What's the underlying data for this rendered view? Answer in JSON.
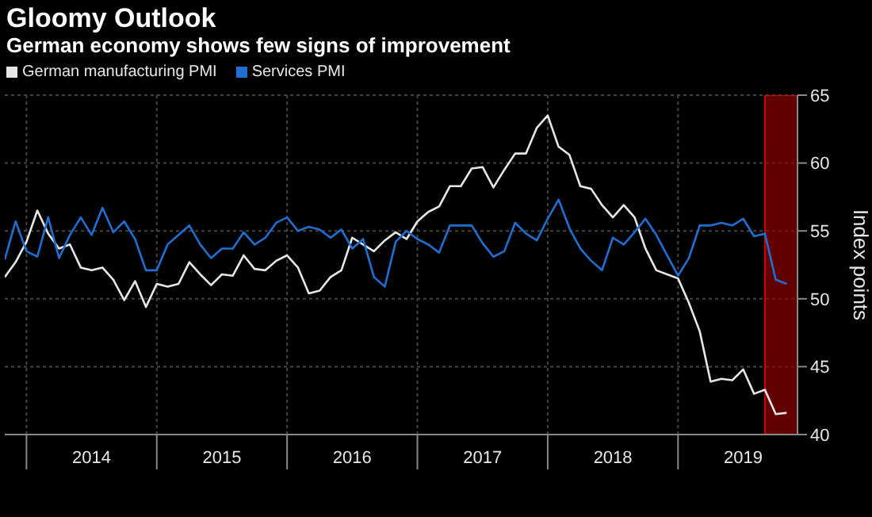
{
  "chart_data": {
    "type": "line",
    "title": "Gloomy Outlook",
    "subtitle": "German economy shows few signs of improvement",
    "ylabel": "Index points",
    "x": [
      "2013-11",
      "2013-12",
      "2014-01",
      "2014-02",
      "2014-03",
      "2014-04",
      "2014-05",
      "2014-06",
      "2014-07",
      "2014-08",
      "2014-09",
      "2014-10",
      "2014-11",
      "2014-12",
      "2015-01",
      "2015-02",
      "2015-03",
      "2015-04",
      "2015-05",
      "2015-06",
      "2015-07",
      "2015-08",
      "2015-09",
      "2015-10",
      "2015-11",
      "2015-12",
      "2016-01",
      "2016-02",
      "2016-03",
      "2016-04",
      "2016-05",
      "2016-06",
      "2016-07",
      "2016-08",
      "2016-09",
      "2016-10",
      "2016-11",
      "2016-12",
      "2017-01",
      "2017-02",
      "2017-03",
      "2017-04",
      "2017-05",
      "2017-06",
      "2017-07",
      "2017-08",
      "2017-09",
      "2017-10",
      "2017-11",
      "2017-12",
      "2018-01",
      "2018-02",
      "2018-03",
      "2018-04",
      "2018-05",
      "2018-06",
      "2018-07",
      "2018-08",
      "2018-09",
      "2018-10",
      "2018-11",
      "2018-12",
      "2019-01",
      "2019-02",
      "2019-03",
      "2019-04",
      "2019-05",
      "2019-06",
      "2019-07",
      "2019-08",
      "2019-09",
      "2019-10",
      "2019-11"
    ],
    "series": [
      {
        "name": "German manufacturing PMI",
        "color": "#e6e6e6",
        "values": [
          51.6,
          52.7,
          54.2,
          56.5,
          54.8,
          53.7,
          54.0,
          52.3,
          52.1,
          52.3,
          51.4,
          49.9,
          51.3,
          49.4,
          51.1,
          50.9,
          51.1,
          52.7,
          51.8,
          51.0,
          51.8,
          51.7,
          53.2,
          52.2,
          52.1,
          52.8,
          53.2,
          52.3,
          50.4,
          50.6,
          51.6,
          52.1,
          54.5,
          54.0,
          53.5,
          54.3,
          54.9,
          54.4,
          55.7,
          56.4,
          56.8,
          58.3,
          58.3,
          59.6,
          59.7,
          58.2,
          59.5,
          60.7,
          60.7,
          62.6,
          63.5,
          61.2,
          60.6,
          58.3,
          58.1,
          56.9,
          56.0,
          56.9,
          56.0,
          53.7,
          52.1,
          51.8,
          51.5,
          49.7,
          47.6,
          43.9,
          44.1,
          44.0,
          44.8,
          43.0,
          43.3,
          41.5,
          41.6
        ]
      },
      {
        "name": "Services PMI",
        "color": "#1e6fd0",
        "values": [
          52.9,
          55.7,
          53.5,
          53.1,
          56.0,
          53.0,
          54.7,
          56.0,
          54.7,
          56.7,
          54.9,
          55.7,
          54.4,
          52.1,
          52.1,
          54.0,
          54.7,
          55.4,
          54.0,
          53.0,
          53.7,
          53.7,
          54.9,
          54.0,
          54.5,
          55.6,
          56.0,
          55.0,
          55.3,
          55.1,
          54.5,
          55.1,
          53.7,
          54.4,
          51.6,
          50.9,
          54.2,
          55.0,
          54.4,
          54.0,
          53.4,
          55.4,
          55.4,
          55.4,
          54.1,
          53.1,
          53.5,
          55.6,
          54.8,
          54.3,
          55.9,
          57.3,
          55.2,
          53.7,
          52.8,
          52.1,
          54.5,
          54.0,
          54.9,
          55.9,
          54.7,
          53.2,
          51.7,
          53.0,
          55.4,
          55.4,
          55.6,
          55.4,
          55.9,
          54.6,
          54.8,
          51.4,
          51.1
        ]
      }
    ],
    "xlim": [
      "2013-11",
      "2019-12"
    ],
    "xticks": [
      {
        "value": "2014-01",
        "label": null
      },
      {
        "value": "2014-07",
        "label": "2014"
      },
      {
        "value": "2015-01",
        "label": null
      },
      {
        "value": "2015-07",
        "label": "2015"
      },
      {
        "value": "2016-01",
        "label": null
      },
      {
        "value": "2016-07",
        "label": "2016"
      },
      {
        "value": "2017-01",
        "label": null
      },
      {
        "value": "2017-07",
        "label": "2017"
      },
      {
        "value": "2018-01",
        "label": null
      },
      {
        "value": "2018-07",
        "label": "2018"
      },
      {
        "value": "2019-01",
        "label": null
      },
      {
        "value": "2019-07",
        "label": "2019"
      }
    ],
    "ylim": [
      40,
      65
    ],
    "yticks": [
      40,
      45,
      50,
      55,
      60,
      65
    ],
    "bands": [
      {
        "axis": "x",
        "from": "2019-09",
        "to": "2019-12",
        "color": "#8b0000"
      }
    ],
    "grid": true,
    "legend": "top left"
  }
}
